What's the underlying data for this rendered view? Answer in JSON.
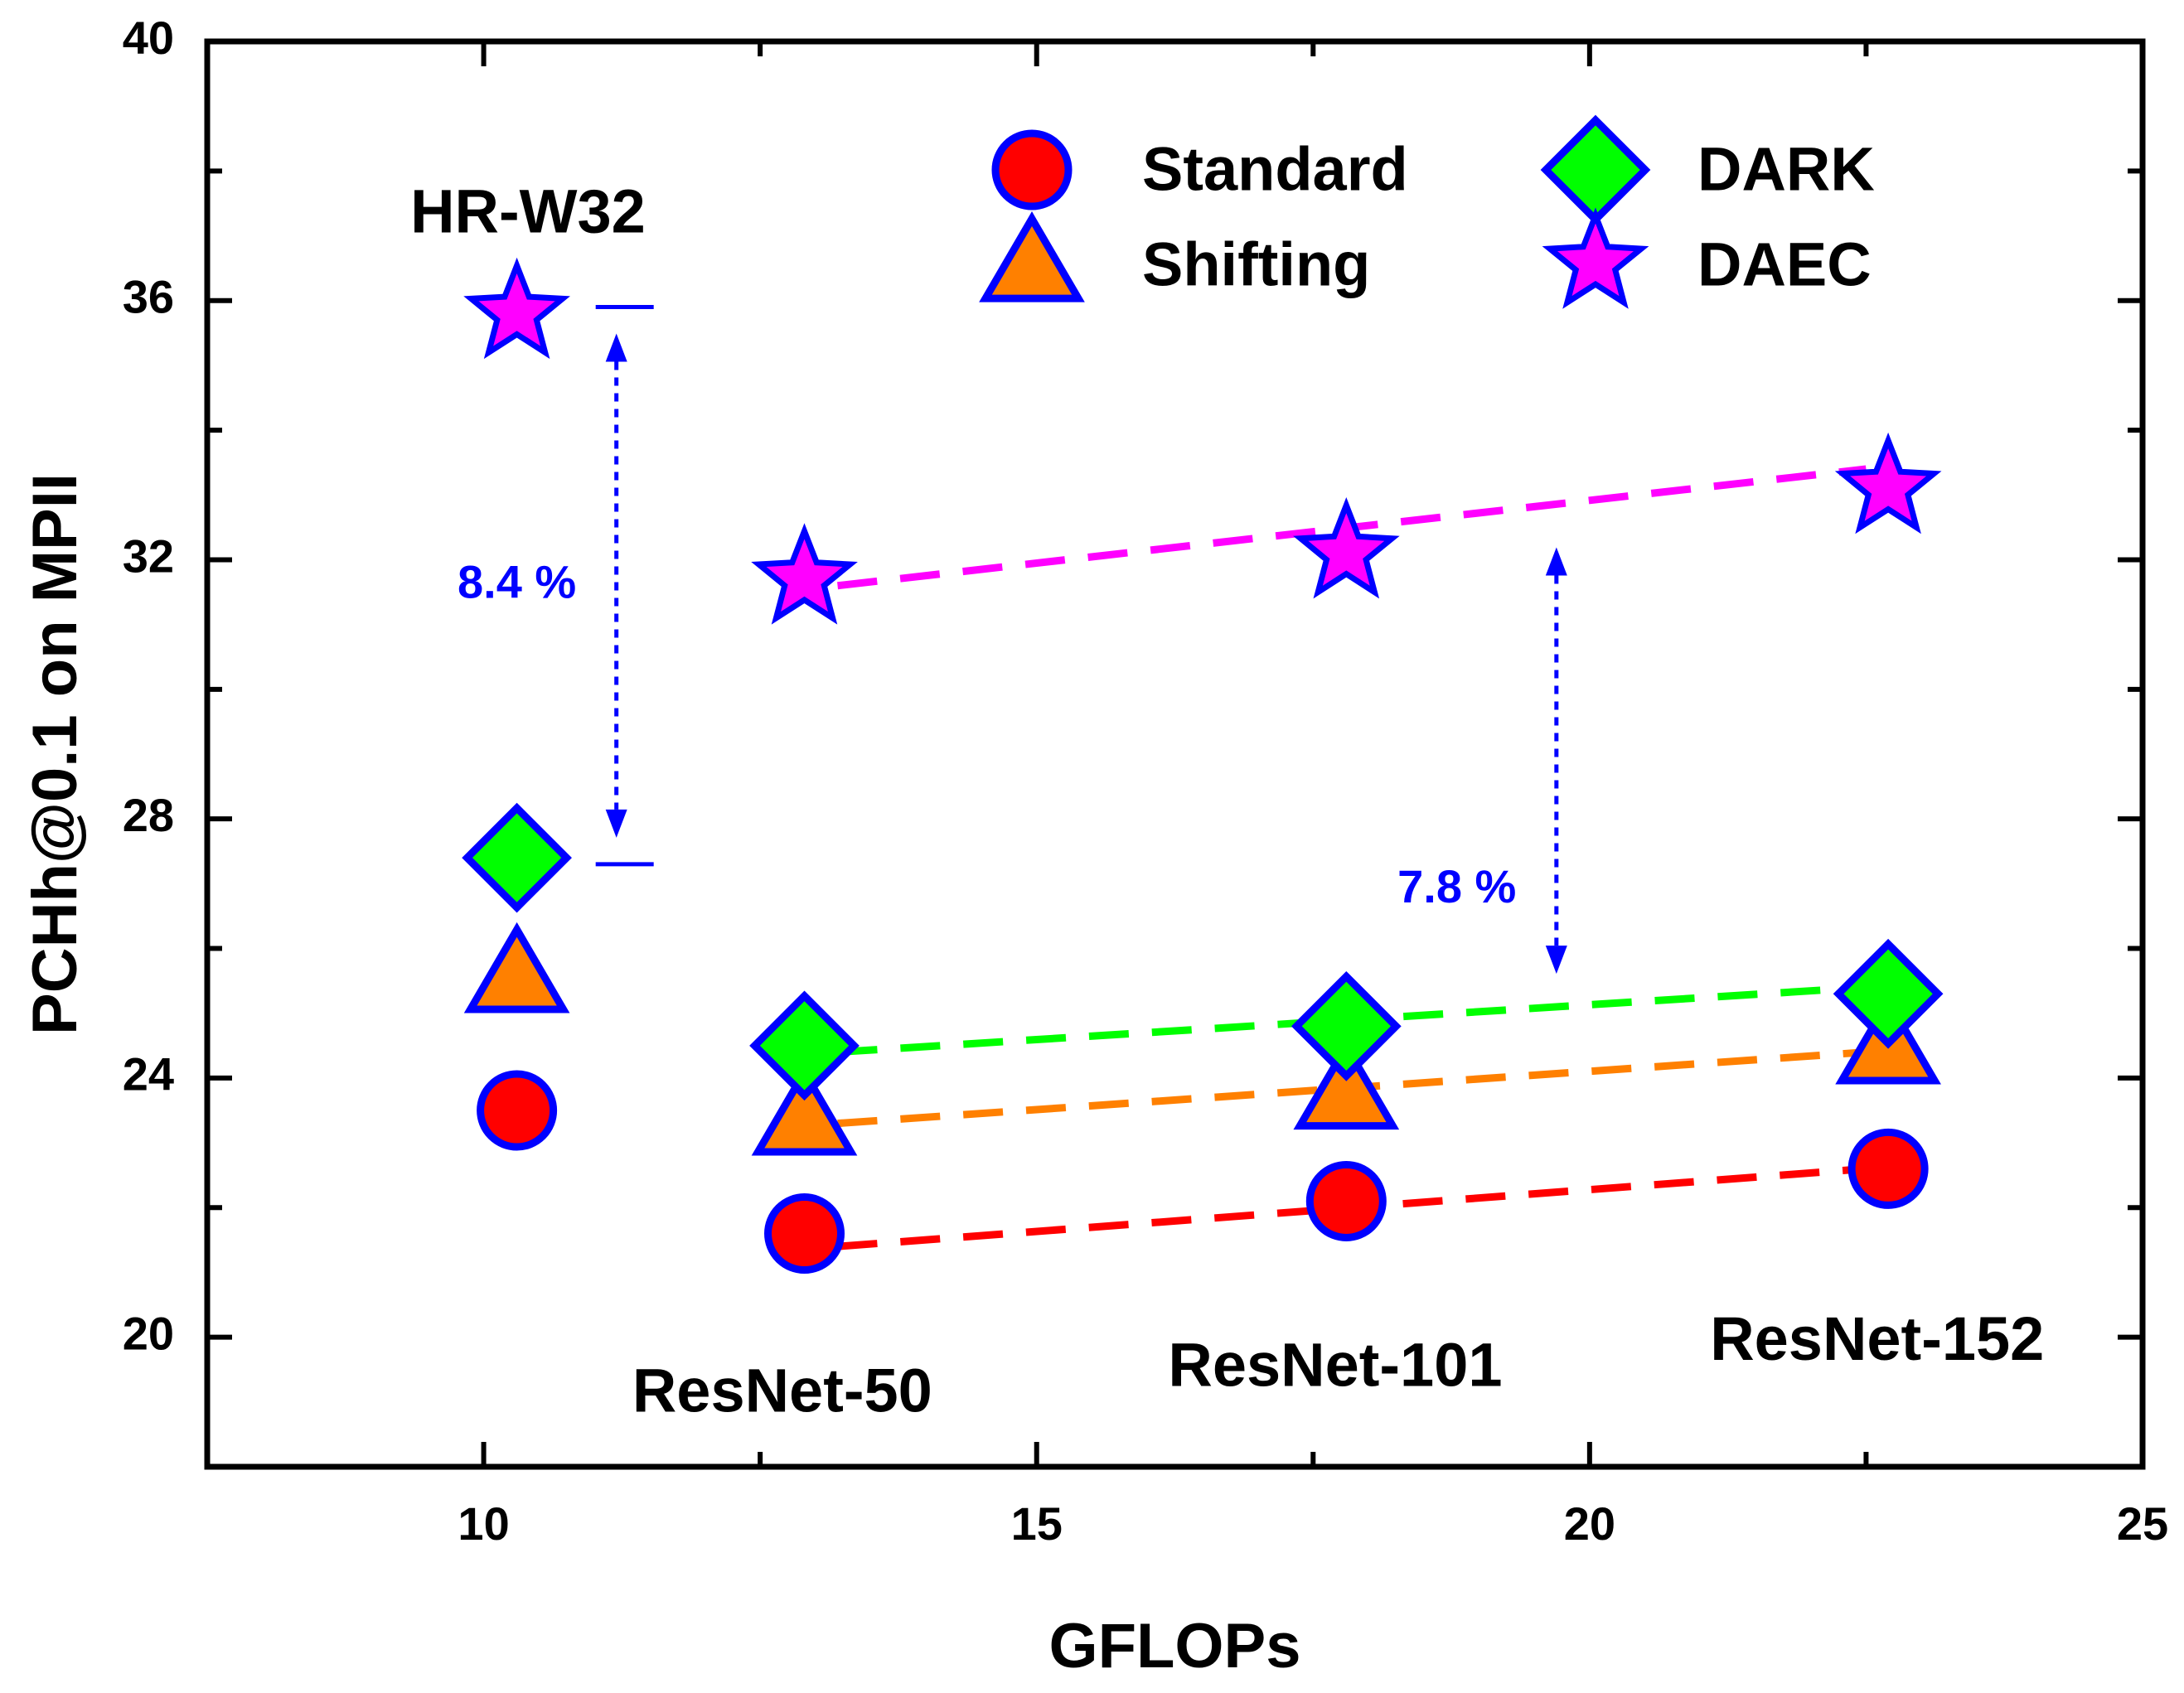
{
  "chart_data": {
    "type": "scatter",
    "title": "",
    "xlabel": "GFLOPs",
    "ylabel": "PCHh@0.1 on MPII",
    "xlim": [
      7.5,
      25
    ],
    "ylim": [
      18,
      40
    ],
    "x_ticks": [
      10,
      15,
      20,
      25
    ],
    "y_ticks": [
      20,
      24,
      28,
      32,
      36,
      40
    ],
    "x_tick_labels": [
      "10",
      "15",
      "20",
      "25"
    ],
    "y_tick_labels": [
      "20",
      "24",
      "28",
      "32",
      "36",
      "40"
    ],
    "grid": false,
    "legend_position": "top-right",
    "colors": {
      "Standard": "#ff0000",
      "Shifting": "#ff8000",
      "DARK": "#00ff00",
      "DAEC": "#ff00ff",
      "marker_edge": "#0000ff",
      "annotation": "#0000ff"
    },
    "series": [
      {
        "name": "Standard",
        "marker": "circle",
        "x": [
          10.3,
          12.9,
          17.8,
          22.7
        ],
        "y": [
          23.5,
          21.6,
          22.1,
          22.6
        ]
      },
      {
        "name": "Shifting",
        "marker": "triangle",
        "x": [
          10.3,
          12.9,
          17.8,
          22.7
        ],
        "y": [
          25.6,
          23.4,
          23.8,
          24.5
        ]
      },
      {
        "name": "DARK",
        "marker": "diamond",
        "x": [
          10.3,
          12.9,
          17.8,
          22.7
        ],
        "y": [
          27.4,
          24.5,
          24.8,
          25.3
        ]
      },
      {
        "name": "DAEC",
        "marker": "star",
        "x": [
          10.3,
          12.9,
          17.8,
          22.7
        ],
        "y": [
          35.8,
          31.7,
          32.1,
          33.1
        ]
      }
    ],
    "trend_lines": [
      {
        "series": "DAEC",
        "x": [
          13.2,
          22.5
        ],
        "y": [
          31.6,
          33.4
        ]
      },
      {
        "series": "DARK",
        "x": [
          13.2,
          22.5
        ],
        "y": [
          24.4,
          25.4
        ]
      },
      {
        "series": "Shifting",
        "x": [
          13.2,
          22.5
        ],
        "y": [
          23.3,
          24.4
        ]
      },
      {
        "series": "Standard",
        "x": [
          13.2,
          22.5
        ],
        "y": [
          21.4,
          22.6
        ]
      }
    ],
    "model_labels": [
      {
        "text": "HR-W32",
        "x": 10.4,
        "y": 37.3
      },
      {
        "text": "ResNet-50",
        "x": 12.7,
        "y": 19.1
      },
      {
        "text": "ResNet-101",
        "x": 17.7,
        "y": 19.5
      },
      {
        "text": "ResNet-152",
        "x": 22.6,
        "y": 19.9
      }
    ],
    "annotations": [
      {
        "text": "8.4 %",
        "x_arrow": 11.2,
        "y_from": 35.9,
        "y_to": 27.3,
        "text_x": 10.3,
        "text_y": 31.6
      },
      {
        "text": "7.8 %",
        "x_arrow": 19.7,
        "y_from": 32.6,
        "y_to": 25.2,
        "text_x": 18.8,
        "text_y": 26.9
      }
    ]
  }
}
